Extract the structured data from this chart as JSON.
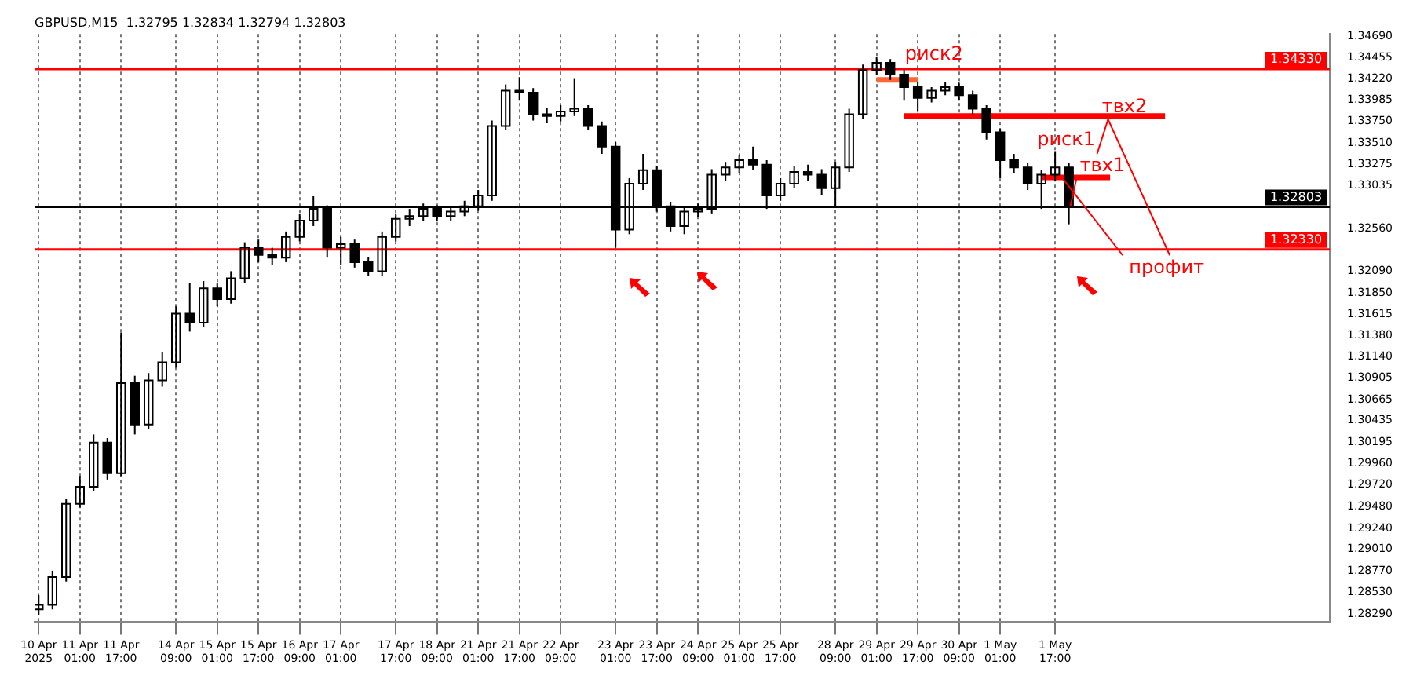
{
  "chart_data": {
    "type": "candlestick",
    "title": "GBPUSD,M15  1.32795 1.32834 1.32794 1.32803",
    "color": "#000000",
    "categories": [
      "10 Apr 2025",
      null,
      null,
      "11 Apr 01:00",
      null,
      null,
      "11 Apr 17:00",
      null,
      null,
      null,
      "14 Apr 09:00",
      null,
      null,
      "15 Apr 01:00",
      null,
      null,
      "15 Apr 17:00",
      null,
      null,
      "16 Apr 09:00",
      null,
      null,
      "17 Apr 01:00",
      null,
      null,
      null,
      "17 Apr 17:00",
      null,
      null,
      "18 Apr 09:00",
      null,
      null,
      "21 Apr 01:00",
      null,
      null,
      "21 Apr 17:00",
      null,
      null,
      "22 Apr 09:00",
      null,
      null,
      null,
      "23 Apr 01:00",
      null,
      null,
      "23 Apr 17:00",
      null,
      null,
      "24 Apr 09:00",
      null,
      null,
      "25 Apr 01:00",
      null,
      null,
      "25 Apr 17:00",
      null,
      null,
      null,
      "28 Apr 09:00",
      null,
      null,
      "29 Apr 01:00",
      null,
      null,
      "29 Apr 17:00",
      null,
      null,
      "30 Apr 09:00",
      null,
      null,
      "1 May 01:00",
      null,
      null,
      null,
      "1 May 17:00",
      null,
      null,
      null,
      null,
      null,
      null,
      null,
      null,
      null,
      null,
      null,
      null,
      null,
      null,
      null,
      null,
      null,
      null,
      null,
      null
    ],
    "ohlc": [
      [
        1.2834,
        1.285,
        1.2828,
        1.2839
      ],
      [
        1.2839,
        1.2877,
        1.2834,
        1.287
      ],
      [
        1.287,
        1.2957,
        1.2865,
        1.2951
      ],
      [
        1.2951,
        1.2982,
        1.2947,
        1.297
      ],
      [
        1.297,
        1.3028,
        1.2965,
        1.3019
      ],
      [
        1.3019,
        1.3024,
        1.2978,
        1.2985
      ],
      [
        1.2985,
        1.3141,
        1.2982,
        1.3085
      ],
      [
        1.3085,
        1.3093,
        1.3028,
        1.3039
      ],
      [
        1.3039,
        1.3096,
        1.3034,
        1.3088
      ],
      [
        1.3088,
        1.3119,
        1.3081,
        1.3108
      ],
      [
        1.3108,
        1.317,
        1.3102,
        1.3162
      ],
      [
        1.3162,
        1.3196,
        1.3142,
        1.3152
      ],
      [
        1.3152,
        1.3198,
        1.3147,
        1.319
      ],
      [
        1.319,
        1.3196,
        1.317,
        1.3178
      ],
      [
        1.3178,
        1.3209,
        1.3173,
        1.3201
      ],
      [
        1.3201,
        1.3241,
        1.3196,
        1.3235
      ],
      [
        1.3235,
        1.3244,
        1.3219,
        1.3227
      ],
      [
        1.3227,
        1.3235,
        1.3216,
        1.3224
      ],
      [
        1.3224,
        1.3253,
        1.3219,
        1.3247
      ],
      [
        1.3247,
        1.3272,
        1.3242,
        1.3265
      ],
      [
        1.3265,
        1.3292,
        1.3259,
        1.3278
      ],
      [
        1.3278,
        1.3282,
        1.3224,
        1.3235
      ],
      [
        1.3235,
        1.3247,
        1.3216,
        1.3239
      ],
      [
        1.3239,
        1.3244,
        1.3213,
        1.3219
      ],
      [
        1.3219,
        1.3225,
        1.3204,
        1.3209
      ],
      [
        1.3209,
        1.3253,
        1.3204,
        1.3247
      ],
      [
        1.3247,
        1.3273,
        1.3242,
        1.3267
      ],
      [
        1.3267,
        1.3278,
        1.3259,
        1.327
      ],
      [
        1.327,
        1.3284,
        1.3265,
        1.3278
      ],
      [
        1.3278,
        1.3282,
        1.3264,
        1.327
      ],
      [
        1.327,
        1.3279,
        1.3265,
        1.3275
      ],
      [
        1.3275,
        1.3287,
        1.327,
        1.3281
      ],
      [
        1.3281,
        1.3299,
        1.3276,
        1.3293
      ],
      [
        1.3293,
        1.3376,
        1.3287,
        1.337
      ],
      [
        1.337,
        1.3416,
        1.3366,
        1.3409
      ],
      [
        1.3409,
        1.3424,
        1.3398,
        1.3407
      ],
      [
        1.3407,
        1.3412,
        1.3376,
        1.3383
      ],
      [
        1.3383,
        1.339,
        1.3373,
        1.3381
      ],
      [
        1.3381,
        1.3393,
        1.3375,
        1.3386
      ],
      [
        1.3386,
        1.3423,
        1.3381,
        1.3389
      ],
      [
        1.3389,
        1.3393,
        1.3366,
        1.337
      ],
      [
        1.337,
        1.3375,
        1.3339,
        1.3347
      ],
      [
        1.3347,
        1.3352,
        1.3235,
        1.3255
      ],
      [
        1.3255,
        1.3312,
        1.325,
        1.3306
      ],
      [
        1.3306,
        1.3339,
        1.3299,
        1.3321
      ],
      [
        1.3321,
        1.3326,
        1.3275,
        1.3281
      ],
      [
        1.3281,
        1.3286,
        1.3253,
        1.3259
      ],
      [
        1.3259,
        1.3281,
        1.325,
        1.3275
      ],
      [
        1.3275,
        1.3284,
        1.3269,
        1.3278
      ],
      [
        1.3278,
        1.3322,
        1.3273,
        1.3316
      ],
      [
        1.3316,
        1.333,
        1.3309,
        1.3324
      ],
      [
        1.3324,
        1.3338,
        1.3318,
        1.3332
      ],
      [
        1.3332,
        1.3347,
        1.3321,
        1.3327
      ],
      [
        1.3327,
        1.3332,
        1.3278,
        1.3293
      ],
      [
        1.3293,
        1.3312,
        1.3287,
        1.3306
      ],
      [
        1.3306,
        1.3326,
        1.3301,
        1.3319
      ],
      [
        1.3319,
        1.3327,
        1.3309,
        1.3316
      ],
      [
        1.3316,
        1.3322,
        1.3293,
        1.3301
      ],
      [
        1.3301,
        1.333,
        1.3281,
        1.3324
      ],
      [
        1.3324,
        1.3389,
        1.3319,
        1.3383
      ],
      [
        1.3383,
        1.3438,
        1.3378,
        1.3432
      ],
      [
        1.3432,
        1.3447,
        1.3426,
        1.344
      ],
      [
        1.344,
        1.3444,
        1.3421,
        1.3427
      ],
      [
        1.3427,
        1.3432,
        1.3398,
        1.3413
      ],
      [
        1.3413,
        1.3419,
        1.3386,
        1.3401
      ],
      [
        1.3401,
        1.3413,
        1.3396,
        1.3409
      ],
      [
        1.3409,
        1.3419,
        1.3404,
        1.3413
      ],
      [
        1.3413,
        1.3418,
        1.3398,
        1.3404
      ],
      [
        1.3404,
        1.3409,
        1.3383,
        1.3389
      ],
      [
        1.3389,
        1.3393,
        1.3355,
        1.3363
      ],
      [
        1.3363,
        1.3367,
        1.3312,
        1.3332
      ],
      [
        1.3332,
        1.3339,
        1.3318,
        1.3324
      ],
      [
        1.3324,
        1.3329,
        1.3299,
        1.3306
      ],
      [
        1.3306,
        1.3321,
        1.3278,
        1.3316
      ],
      [
        1.3316,
        1.3342,
        1.3309,
        1.3324
      ],
      [
        1.3324,
        1.3329,
        1.3261,
        1.32803
      ],
      null,
      null,
      null,
      null,
      null,
      null,
      null,
      null,
      null,
      null,
      null,
      null,
      null,
      null,
      null,
      null,
      null,
      null,
      null
    ],
    "series": [
      {
        "type": "line",
        "color": "#ff6633",
        "values": [
          null,
          null,
          null,
          null,
          null,
          null,
          null,
          null,
          null,
          null,
          null,
          null,
          null,
          null,
          null,
          null,
          null,
          null,
          null,
          null,
          null,
          null,
          null,
          null,
          null,
          null,
          null,
          null,
          null,
          null,
          null,
          null,
          null,
          null,
          null,
          null,
          null,
          null,
          null,
          null,
          null,
          null,
          null,
          null,
          null,
          null,
          null,
          null,
          null,
          null,
          null,
          null,
          null,
          null,
          null,
          null,
          null,
          null,
          null,
          null,
          null,
          1.3421,
          1.3421,
          1.3421,
          1.3421,
          null,
          null,
          null,
          null,
          null,
          null,
          null,
          null,
          null,
          null,
          null,
          null,
          null,
          null,
          null,
          null,
          null,
          null,
          null,
          null,
          null,
          null,
          null,
          null,
          null,
          null,
          null,
          null,
          null,
          null
        ]
      },
      {
        "type": "line",
        "color": "#ff0000",
        "values": [
          null,
          null,
          null,
          null,
          null,
          null,
          null,
          null,
          null,
          null,
          null,
          null,
          null,
          null,
          null,
          null,
          null,
          null,
          null,
          null,
          null,
          null,
          null,
          null,
          null,
          null,
          null,
          null,
          null,
          null,
          null,
          null,
          null,
          null,
          null,
          null,
          null,
          null,
          null,
          null,
          null,
          null,
          null,
          null,
          null,
          null,
          null,
          null,
          null,
          null,
          null,
          null,
          null,
          null,
          null,
          null,
          null,
          null,
          null,
          null,
          null,
          null,
          null,
          1.3381,
          1.3381,
          1.3381,
          1.3381,
          1.3381,
          1.3381,
          1.3381,
          1.3381,
          1.3381,
          1.3381,
          1.3381,
          1.3381,
          1.3381,
          1.3381,
          1.3381,
          1.3381,
          1.3381,
          1.3381,
          1.3381,
          1.3381,
          null,
          null,
          null,
          null,
          null,
          null,
          null,
          null,
          null,
          null,
          null,
          null
        ]
      },
      {
        "type": "line",
        "color": "#ff0000",
        "values": [
          null,
          null,
          null,
          null,
          null,
          null,
          null,
          null,
          null,
          null,
          null,
          null,
          null,
          null,
          null,
          null,
          null,
          null,
          null,
          null,
          null,
          null,
          null,
          null,
          null,
          null,
          null,
          null,
          null,
          null,
          null,
          null,
          null,
          null,
          null,
          null,
          null,
          null,
          null,
          null,
          null,
          null,
          null,
          null,
          null,
          null,
          null,
          null,
          null,
          null,
          null,
          null,
          null,
          null,
          null,
          null,
          null,
          null,
          null,
          null,
          null,
          null,
          null,
          null,
          null,
          null,
          null,
          null,
          null,
          null,
          null,
          null,
          null,
          1.3313,
          1.3313,
          1.3313,
          1.3313,
          1.3313,
          1.3313,
          null,
          null,
          null,
          null,
          null,
          null,
          null,
          null,
          null,
          null,
          null,
          null,
          null,
          null,
          null,
          null
        ]
      }
    ],
    "ylim": [
      1.282,
      1.3472
    ],
    "yticks": [
      {
        "value": 1.2829,
        "label": "1.28290"
      },
      {
        "value": 1.2853,
        "label": "1.28530"
      },
      {
        "value": 1.2877,
        "label": "1.28770"
      },
      {
        "value": 1.2901,
        "label": "1.29010"
      },
      {
        "value": 1.2924,
        "label": "1.29240"
      },
      {
        "value": 1.2948,
        "label": "1.29480"
      },
      {
        "value": 1.2972,
        "label": "1.29720"
      },
      {
        "value": 1.2996,
        "label": "1.29960"
      },
      {
        "value": 1.30195,
        "label": "1.30195"
      },
      {
        "value": 1.30435,
        "label": "1.30435"
      },
      {
        "value": 1.30665,
        "label": "1.30665"
      },
      {
        "value": 1.30905,
        "label": "1.30905"
      },
      {
        "value": 1.3114,
        "label": "1.31140"
      },
      {
        "value": 1.3138,
        "label": "1.31380"
      },
      {
        "value": 1.31615,
        "label": "1.31615"
      },
      {
        "value": 1.3185,
        "label": "1.31850"
      },
      {
        "value": 1.3209,
        "label": "1.32090"
      },
      {
        "value": 1.3256,
        "label": "1.32560"
      },
      {
        "value": 1.33035,
        "label": "1.33035"
      },
      {
        "value": 1.33275,
        "label": "1.33275"
      },
      {
        "value": 1.3351,
        "label": "1.33510"
      },
      {
        "value": 1.3375,
        "label": "1.33750"
      },
      {
        "value": 1.33985,
        "label": "1.33985"
      },
      {
        "value": 1.3422,
        "label": "1.34220"
      },
      {
        "value": 1.34455,
        "label": "1.34455"
      },
      {
        "value": 1.3469,
        "label": "1.34690"
      }
    ],
    "grid": "x",
    "ref_lines": [
      {
        "axis": "y",
        "value": 1.3433,
        "label": "1.34330",
        "color": "#ff0000"
      },
      {
        "axis": "y",
        "value": 1.3233,
        "label": "1.32330",
        "color": "#ff0000"
      },
      {
        "axis": "y",
        "value": 1.32803,
        "label": "1.32803",
        "color": "#000000"
      }
    ],
    "annotations": [
      "риск2",
      "твх2",
      "риск1",
      "твх1",
      {
        "text": "профит",
        "x": "1 May 17:00",
        "y": 1.3313
      }
    ]
  }
}
